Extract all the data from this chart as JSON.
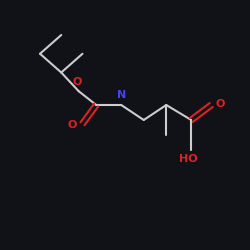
{
  "fig_bg": "#111118",
  "line_color": "#cccccc",
  "N_color": "#4444ee",
  "O_color": "#dd2222",
  "bond_lw": 1.5,
  "font_size": 8.0,
  "xlim": [
    0,
    10
  ],
  "ylim": [
    0,
    10
  ]
}
